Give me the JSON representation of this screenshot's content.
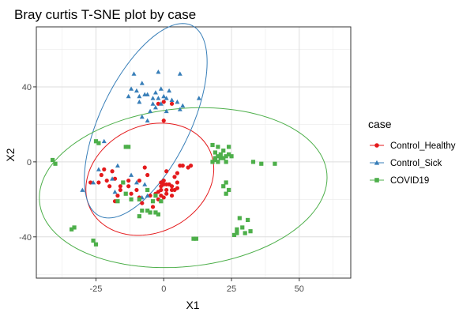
{
  "chart_data": {
    "type": "scatter",
    "title": "Bray curtis T-SNE plot by case",
    "xlabel": "X1",
    "ylabel": "X2",
    "xlim": [
      -47,
      69
    ],
    "ylim": [
      -62,
      72
    ],
    "x_ticks": [
      -25,
      0,
      25,
      50
    ],
    "x_tick_labels": [
      "-25",
      "0",
      "25",
      "50"
    ],
    "y_ticks": [
      -40,
      0,
      40
    ],
    "y_tick_labels": [
      "-40",
      "0",
      "40"
    ],
    "grid": true,
    "legend": {
      "title": "case",
      "position": "right"
    },
    "series": [
      {
        "name": "Control_Healthy",
        "color": "#e41a1c",
        "marker": "circle",
        "points": [
          [
            -2,
            31
          ],
          [
            0,
            32
          ],
          [
            3,
            31
          ],
          [
            0,
            22
          ],
          [
            -7,
            -3
          ],
          [
            -6,
            -7
          ],
          [
            -9,
            -10
          ],
          [
            -22,
            -4
          ],
          [
            -23,
            -7
          ],
          [
            -21,
            -10
          ],
          [
            -19,
            -5
          ],
          [
            -18,
            -9
          ],
          [
            -20,
            -13
          ],
          [
            -16,
            -13
          ],
          [
            -17,
            -18
          ],
          [
            -24,
            -11
          ],
          [
            -27,
            -11
          ],
          [
            -12,
            -17
          ],
          [
            -13,
            -10
          ],
          [
            -10,
            -15
          ],
          [
            -9,
            -19
          ],
          [
            -8,
            -22
          ],
          [
            -5,
            -18
          ],
          [
            -3,
            -17
          ],
          [
            -2,
            -20
          ],
          [
            -4,
            -24
          ],
          [
            -1,
            -13
          ],
          [
            -1,
            -11
          ],
          [
            0,
            -12
          ],
          [
            1,
            -12
          ],
          [
            2,
            -12
          ],
          [
            3,
            -13
          ],
          [
            -1,
            -15
          ],
          [
            1,
            -15
          ],
          [
            3,
            -15
          ],
          [
            4,
            -15
          ],
          [
            5,
            -14
          ],
          [
            -2,
            -16
          ],
          [
            1,
            -17
          ],
          [
            3,
            -18
          ],
          [
            -1,
            -18
          ],
          [
            0,
            -19
          ],
          [
            5,
            -11
          ],
          [
            4,
            -8
          ],
          [
            6,
            -2
          ],
          [
            7,
            -2
          ],
          [
            9,
            -3
          ],
          [
            10,
            -2
          ],
          [
            5,
            -6
          ],
          [
            1,
            -5
          ],
          [
            0,
            -10
          ],
          [
            -13,
            -13
          ],
          [
            -16,
            -15
          ],
          [
            -18,
            -21
          ]
        ]
      },
      {
        "name": "Control_Sick",
        "color": "#377eb8",
        "marker": "triangle",
        "points": [
          [
            -11,
            47
          ],
          [
            -2,
            48
          ],
          [
            6,
            47
          ],
          [
            -8,
            42
          ],
          [
            -10,
            38
          ],
          [
            -9,
            35
          ],
          [
            -6,
            36
          ],
          [
            -4,
            34
          ],
          [
            -3,
            37
          ],
          [
            -2,
            34
          ],
          [
            0,
            35
          ],
          [
            1,
            34
          ],
          [
            -1,
            31
          ],
          [
            -4,
            31
          ],
          [
            -7,
            36
          ],
          [
            -9,
            32
          ],
          [
            -5,
            27
          ],
          [
            -8,
            24
          ],
          [
            -6,
            22
          ],
          [
            -3,
            29
          ],
          [
            1,
            27
          ],
          [
            3,
            33
          ],
          [
            5,
            32
          ],
          [
            7,
            30
          ],
          [
            6,
            28
          ],
          [
            2,
            38
          ],
          [
            -1,
            39
          ],
          [
            -13,
            35
          ],
          [
            -12,
            39
          ],
          [
            13,
            34
          ],
          [
            -22,
            11
          ],
          [
            -24,
            -4
          ],
          [
            -26,
            -11
          ],
          [
            -30,
            -15
          ],
          [
            -18,
            -16
          ],
          [
            -12,
            -7
          ],
          [
            -10,
            -11
          ],
          [
            -8,
            -19
          ],
          [
            -6,
            -18
          ],
          [
            -7,
            -12
          ],
          [
            -19,
            -9
          ],
          [
            -17,
            -2
          ]
        ]
      },
      {
        "name": "COVID19",
        "color": "#4daf4a",
        "marker": "square",
        "points": [
          [
            -41,
            1
          ],
          [
            -40,
            -1
          ],
          [
            -25,
            11
          ],
          [
            -24,
            10
          ],
          [
            -14,
            8
          ],
          [
            -13,
            8
          ],
          [
            -33,
            -35
          ],
          [
            -34,
            -36
          ],
          [
            -26,
            -42
          ],
          [
            -25,
            -44
          ],
          [
            -17,
            -21
          ],
          [
            -8,
            -26
          ],
          [
            -6,
            -26
          ],
          [
            -9,
            -29
          ],
          [
            -5,
            -27
          ],
          [
            -3,
            -27
          ],
          [
            -1,
            -21
          ],
          [
            -3,
            -18
          ],
          [
            -4,
            -21
          ],
          [
            -2,
            -28
          ],
          [
            -12,
            -20
          ],
          [
            -6,
            -15
          ],
          [
            -9,
            -20
          ],
          [
            -14,
            -17
          ],
          [
            -15,
            -11
          ],
          [
            18,
            9
          ],
          [
            20,
            8
          ],
          [
            22,
            6
          ],
          [
            24,
            8
          ],
          [
            19,
            5
          ],
          [
            21,
            4
          ],
          [
            23,
            3
          ],
          [
            19,
            2
          ],
          [
            20,
            3
          ],
          [
            22,
            2
          ],
          [
            24,
            4
          ],
          [
            19,
            1
          ],
          [
            21,
            2
          ],
          [
            20,
            0
          ],
          [
            23,
            0
          ],
          [
            25,
            3
          ],
          [
            18,
            0
          ],
          [
            23,
            -11
          ],
          [
            22,
            -13
          ],
          [
            24,
            -15
          ],
          [
            23,
            -17
          ],
          [
            33,
            0
          ],
          [
            36,
            -1
          ],
          [
            41,
            -1
          ],
          [
            11,
            -41
          ],
          [
            12,
            -41
          ],
          [
            27,
            -36
          ],
          [
            29,
            -35
          ],
          [
            31,
            -31
          ],
          [
            28,
            -30
          ],
          [
            27,
            -38
          ],
          [
            30,
            -38
          ],
          [
            32,
            -37
          ],
          [
            26,
            -39
          ]
        ]
      }
    ]
  }
}
